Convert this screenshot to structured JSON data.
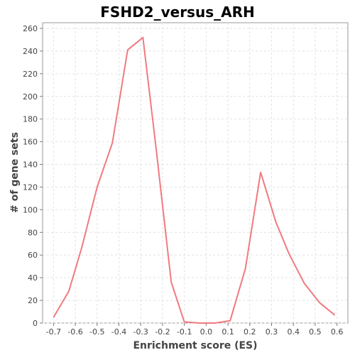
{
  "chart_data": {
    "type": "line",
    "title": "FSHD2_versus_ARH",
    "xlabel": "Enrichment score (ES)",
    "ylabel": "# of gene sets",
    "xlim": [
      -0.75,
      0.65
    ],
    "ylim": [
      0,
      265
    ],
    "grid": true,
    "x_ticks": [
      -0.7,
      -0.6,
      -0.5,
      -0.4,
      -0.3,
      -0.2,
      -0.1,
      0.0,
      0.1,
      0.2,
      0.3,
      0.4,
      0.5,
      0.6
    ],
    "x_tick_labels": [
      "-0.7",
      "-0.6",
      "-0.5",
      "-0.4",
      "-0.3",
      "-0.2",
      "-0.1",
      "0.0",
      "0.1",
      "0.2",
      "0.3",
      "0.4",
      "0.5",
      "0.6"
    ],
    "y_ticks": [
      0,
      20,
      40,
      60,
      80,
      100,
      120,
      140,
      160,
      180,
      200,
      220,
      240,
      260
    ],
    "y_tick_labels": [
      "0",
      "20",
      "40",
      "60",
      "80",
      "100",
      "120",
      "140",
      "160",
      "180",
      "200",
      "220",
      "240",
      "260"
    ],
    "series": [
      {
        "color": "#f07a80",
        "x": [
          -0.7,
          -0.63,
          -0.57,
          -0.5,
          -0.43,
          -0.36,
          -0.29,
          -0.23,
          -0.16,
          -0.1,
          -0.03,
          0.04,
          0.11,
          0.18,
          0.25,
          0.32,
          0.38,
          0.45,
          0.52,
          0.59
        ],
        "y": [
          5,
          28,
          67,
          120,
          159,
          241,
          252,
          155,
          36,
          1,
          0,
          0,
          2,
          48,
          133,
          89,
          61,
          35,
          18,
          7
        ]
      }
    ]
  }
}
